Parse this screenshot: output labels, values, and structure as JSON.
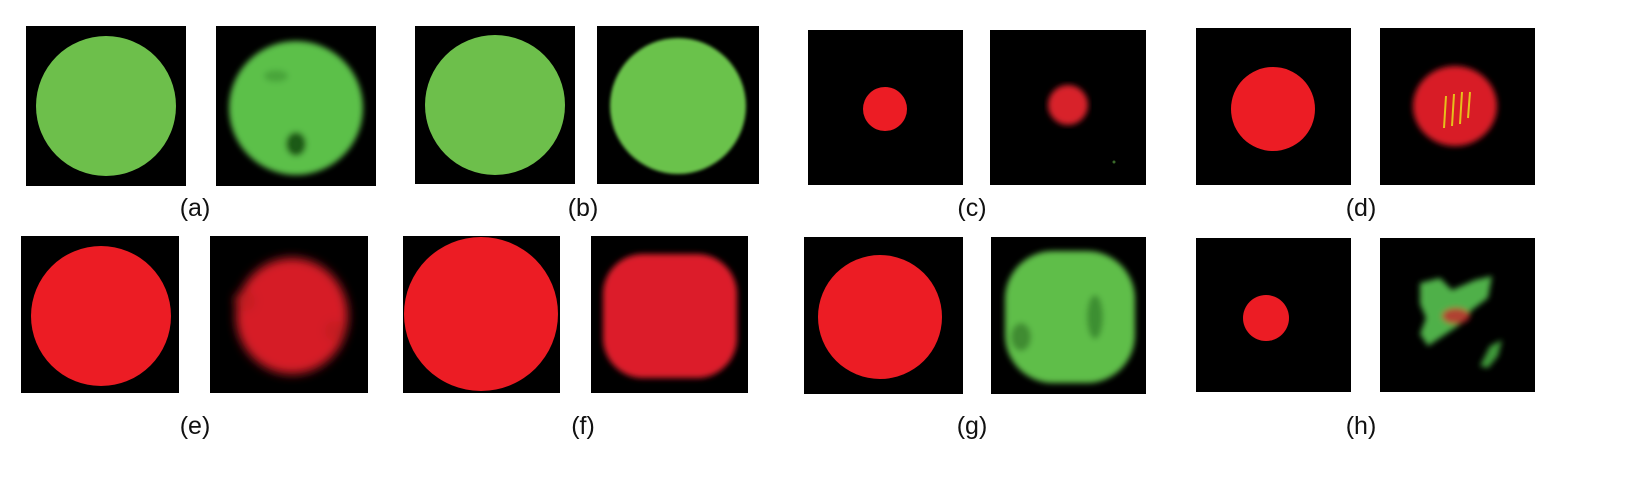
{
  "figure": {
    "captions": [
      "(a)",
      "(b)",
      "(c)",
      "(d)",
      "(e)",
      "(f)",
      "(g)",
      "(h)"
    ],
    "colors": {
      "background": "#000000",
      "green": "#6dbf4b",
      "red": "#ec1c24",
      "yellow": "#e8d21a"
    }
  }
}
